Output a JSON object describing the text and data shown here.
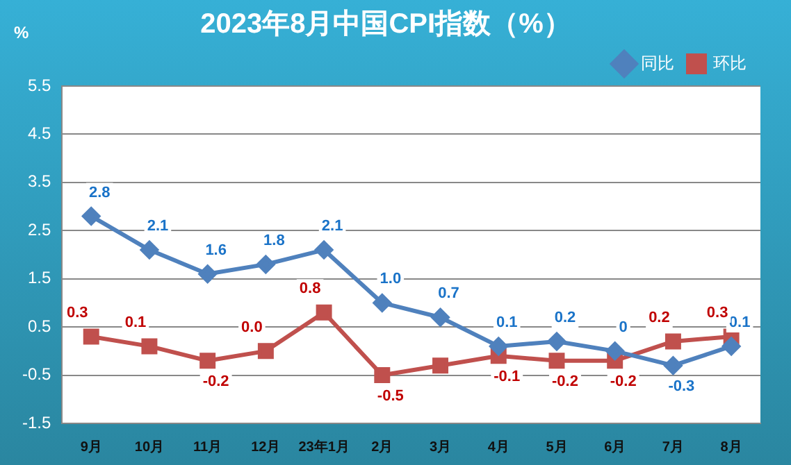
{
  "chart_data": {
    "type": "line",
    "title": "2023年8月中国CPI指数（%）",
    "ylabel": "%",
    "categories": [
      "9月",
      "10月",
      "11月",
      "12月",
      "23年1月",
      "2月",
      "3月",
      "4月",
      "5月",
      "6月",
      "7月",
      "8月"
    ],
    "series": [
      {
        "name": "同比",
        "color": "#4f81bd",
        "marker": "diamond",
        "values": [
          2.8,
          2.1,
          1.6,
          1.8,
          2.1,
          1.0,
          0.7,
          0.1,
          0.2,
          0,
          -0.3,
          0.1
        ],
        "value_labels": [
          "2.8",
          "2.1",
          "1.6",
          "1.8",
          "2.1",
          "1.0",
          "0.7",
          "0.1",
          "0.2",
          "0",
          "-0.3",
          "0.1"
        ]
      },
      {
        "name": "环比",
        "color": "#c0504d",
        "marker": "square",
        "values": [
          0.3,
          0.1,
          -0.2,
          0.0,
          0.8,
          -0.5,
          -0.3,
          -0.1,
          -0.2,
          -0.2,
          0.2,
          0.3
        ],
        "value_labels": [
          "0.3",
          "0.1",
          "-0.2",
          "0.0",
          "0.8",
          "-0.5",
          null,
          "-0.1",
          "-0.2",
          "-0.2",
          "0.2",
          "0.3"
        ]
      }
    ],
    "ylim": [
      -1.5,
      5.5
    ],
    "yticks": [
      -1.5,
      -0.5,
      0.5,
      1.5,
      2.5,
      3.5,
      4.5,
      5.5
    ],
    "grid": "y",
    "legend": "top right"
  }
}
